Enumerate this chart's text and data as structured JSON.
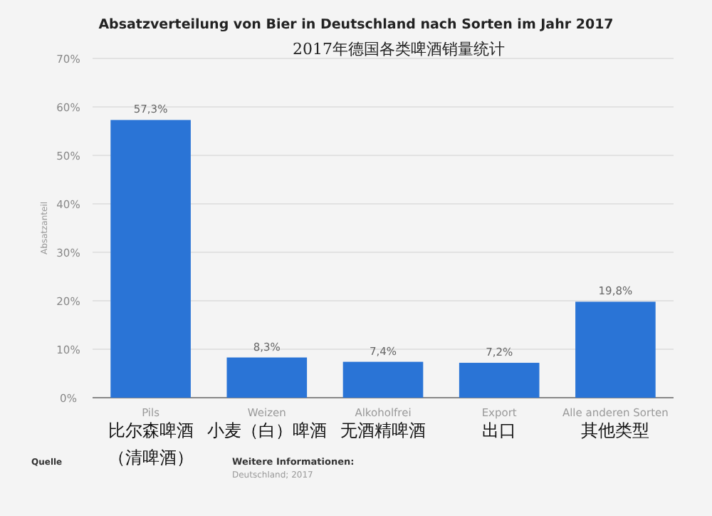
{
  "chart_data": {
    "type": "bar",
    "title": "Absatzverteilung von Bier in Deutschland nach Sorten im Jahr 2017",
    "subtitle": "2017年德国各类啤酒销量统计",
    "ylabel": "Absatzanteil",
    "categories": [
      "Pils\n比尔森啤酒（清啤酒）",
      "Weizen\n小麦（白）啤酒",
      "Alkoholfrei\n无酒精啤酒",
      "Export\n出口",
      "Alle anderen Sorten\n其他类型"
    ],
    "values": [
      57.3,
      8.3,
      7.4,
      7.2,
      19.8
    ],
    "color": "#2a74d6",
    "value_labels": [
      "57,3%",
      "8,3%",
      "7,4%",
      "7,2%",
      "19,8%"
    ],
    "ylim": [
      0,
      70
    ],
    "yticks": [
      {
        "value": 0,
        "label": "0%"
      },
      {
        "value": 10,
        "label": "10%"
      },
      {
        "value": 20,
        "label": "20%"
      },
      {
        "value": 30,
        "label": "30%"
      },
      {
        "value": 40,
        "label": "40%"
      },
      {
        "value": 50,
        "label": "50%"
      },
      {
        "value": 60,
        "label": "60%"
      },
      {
        "value": 70,
        "label": "70%"
      }
    ],
    "grid": "y",
    "annotations": [
      "Quelle",
      "Weitere Informationen:",
      "Deutschland; 2017"
    ]
  }
}
